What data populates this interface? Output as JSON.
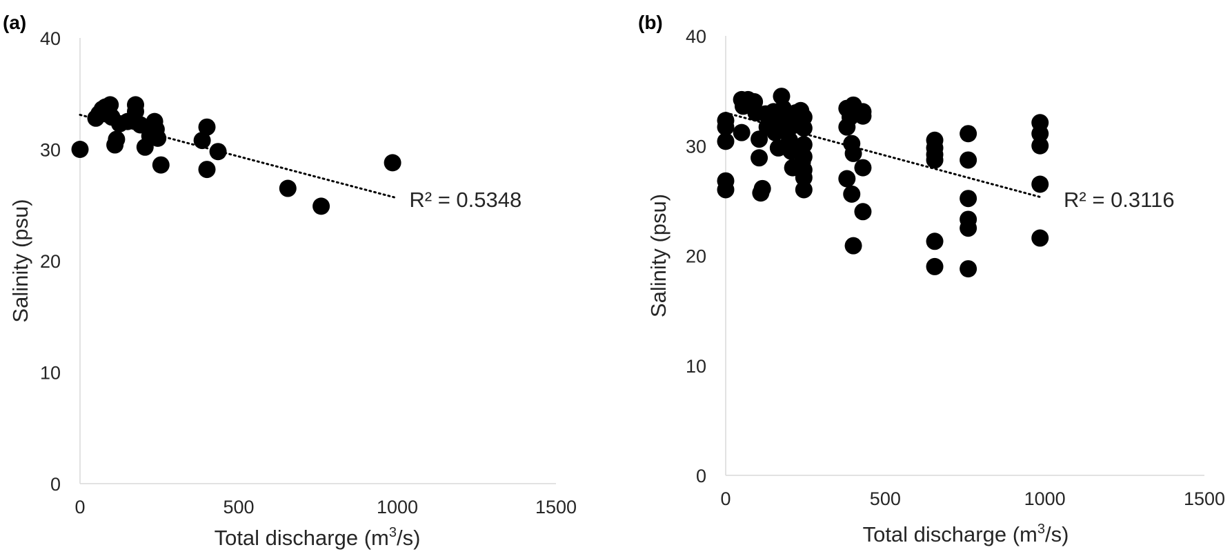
{
  "colors": {
    "point": "#000000",
    "axis": "#d9d9d9",
    "text": "#262626",
    "trendline": "#000000"
  },
  "chart_data": [
    {
      "type": "scatter",
      "panel_label": "(a)",
      "xlabel": {
        "prefix": "Total discharge (m",
        "sup": "3",
        "suffix": "/s)"
      },
      "ylabel": "Salinity (psu)",
      "xlim": [
        0,
        1500
      ],
      "ylim": [
        0,
        40
      ],
      "xticks": [
        "0",
        "500",
        "1000",
        "1500"
      ],
      "yticks": [
        "0",
        "10",
        "20",
        "30",
        "40"
      ],
      "trendline": {
        "type": "linear",
        "x_start": 0,
        "x_end": 990,
        "y_start": 33.1,
        "y_end": 25.7,
        "r2_label": "R² = 0.5348"
      },
      "points": [
        {
          "x": 0,
          "y": 30.0
        },
        {
          "x": 50,
          "y": 32.8
        },
        {
          "x": 60,
          "y": 33.2
        },
        {
          "x": 70,
          "y": 33.6
        },
        {
          "x": 80,
          "y": 33.8
        },
        {
          "x": 95,
          "y": 34.0
        },
        {
          "x": 100,
          "y": 32.9
        },
        {
          "x": 110,
          "y": 30.4
        },
        {
          "x": 115,
          "y": 30.9
        },
        {
          "x": 125,
          "y": 32.3
        },
        {
          "x": 150,
          "y": 32.5
        },
        {
          "x": 175,
          "y": 34.0
        },
        {
          "x": 175,
          "y": 33.4
        },
        {
          "x": 190,
          "y": 32.2
        },
        {
          "x": 205,
          "y": 30.2
        },
        {
          "x": 220,
          "y": 31.2
        },
        {
          "x": 235,
          "y": 32.5
        },
        {
          "x": 240,
          "y": 31.8
        },
        {
          "x": 245,
          "y": 31.0
        },
        {
          "x": 255,
          "y": 28.6
        },
        {
          "x": 385,
          "y": 30.8
        },
        {
          "x": 400,
          "y": 32.0
        },
        {
          "x": 400,
          "y": 28.2
        },
        {
          "x": 435,
          "y": 29.8
        },
        {
          "x": 655,
          "y": 26.5
        },
        {
          "x": 760,
          "y": 24.9
        },
        {
          "x": 985,
          "y": 28.8
        }
      ]
    },
    {
      "type": "scatter",
      "panel_label": "(b)",
      "xlabel": {
        "prefix": "Total discharge (m",
        "sup": "3",
        "suffix": "/s)"
      },
      "ylabel": "Salinity (psu)",
      "xlim": [
        0,
        1500
      ],
      "ylim": [
        0,
        40
      ],
      "xticks": [
        "0",
        "500",
        "1000",
        "1500"
      ],
      "yticks": [
        "0",
        "10",
        "20",
        "30",
        "40"
      ],
      "trendline": {
        "type": "linear",
        "x_start": 0,
        "x_end": 990,
        "y_start": 33.0,
        "y_end": 25.3,
        "r2_label": "R² = 0.3116"
      },
      "points": [
        {
          "x": 0,
          "y": 32.3
        },
        {
          "x": 0,
          "y": 31.7
        },
        {
          "x": 0,
          "y": 30.4
        },
        {
          "x": 0,
          "y": 26.8
        },
        {
          "x": 0,
          "y": 26.0
        },
        {
          "x": 50,
          "y": 34.2
        },
        {
          "x": 55,
          "y": 33.6
        },
        {
          "x": 50,
          "y": 31.2
        },
        {
          "x": 70,
          "y": 34.2
        },
        {
          "x": 80,
          "y": 33.7
        },
        {
          "x": 90,
          "y": 34.0
        },
        {
          "x": 95,
          "y": 33.0
        },
        {
          "x": 105,
          "y": 30.6
        },
        {
          "x": 105,
          "y": 28.9
        },
        {
          "x": 115,
          "y": 26.1
        },
        {
          "x": 110,
          "y": 25.7
        },
        {
          "x": 125,
          "y": 32.9
        },
        {
          "x": 130,
          "y": 31.7
        },
        {
          "x": 140,
          "y": 32.4
        },
        {
          "x": 150,
          "y": 33.1
        },
        {
          "x": 155,
          "y": 31.2
        },
        {
          "x": 165,
          "y": 29.8
        },
        {
          "x": 175,
          "y": 34.5
        },
        {
          "x": 180,
          "y": 33.4
        },
        {
          "x": 185,
          "y": 32.2
        },
        {
          "x": 195,
          "y": 31.4
        },
        {
          "x": 200,
          "y": 30.5
        },
        {
          "x": 205,
          "y": 29.5
        },
        {
          "x": 210,
          "y": 28.0
        },
        {
          "x": 220,
          "y": 33.0
        },
        {
          "x": 225,
          "y": 31.9
        },
        {
          "x": 235,
          "y": 33.2
        },
        {
          "x": 245,
          "y": 32.6
        },
        {
          "x": 245,
          "y": 31.6
        },
        {
          "x": 245,
          "y": 30.1
        },
        {
          "x": 245,
          "y": 29.0
        },
        {
          "x": 245,
          "y": 27.8
        },
        {
          "x": 245,
          "y": 27.1
        },
        {
          "x": 245,
          "y": 26.0
        },
        {
          "x": 240,
          "y": 28.5
        },
        {
          "x": 380,
          "y": 33.4
        },
        {
          "x": 390,
          "y": 32.6
        },
        {
          "x": 380,
          "y": 31.7
        },
        {
          "x": 395,
          "y": 30.2
        },
        {
          "x": 400,
          "y": 29.3
        },
        {
          "x": 380,
          "y": 27.0
        },
        {
          "x": 395,
          "y": 25.6
        },
        {
          "x": 400,
          "y": 20.9
        },
        {
          "x": 400,
          "y": 33.7
        },
        {
          "x": 430,
          "y": 33.1
        },
        {
          "x": 430,
          "y": 32.7
        },
        {
          "x": 430,
          "y": 28.0
        },
        {
          "x": 430,
          "y": 24.0
        },
        {
          "x": 655,
          "y": 30.5
        },
        {
          "x": 655,
          "y": 29.8
        },
        {
          "x": 655,
          "y": 29.2
        },
        {
          "x": 655,
          "y": 28.7
        },
        {
          "x": 655,
          "y": 21.3
        },
        {
          "x": 655,
          "y": 19.0
        },
        {
          "x": 760,
          "y": 31.1
        },
        {
          "x": 760,
          "y": 28.7
        },
        {
          "x": 760,
          "y": 25.2
        },
        {
          "x": 760,
          "y": 23.3
        },
        {
          "x": 760,
          "y": 22.5
        },
        {
          "x": 760,
          "y": 18.8
        },
        {
          "x": 985,
          "y": 32.1
        },
        {
          "x": 985,
          "y": 31.1
        },
        {
          "x": 985,
          "y": 30.0
        },
        {
          "x": 985,
          "y": 26.5
        },
        {
          "x": 985,
          "y": 21.6
        }
      ]
    }
  ]
}
